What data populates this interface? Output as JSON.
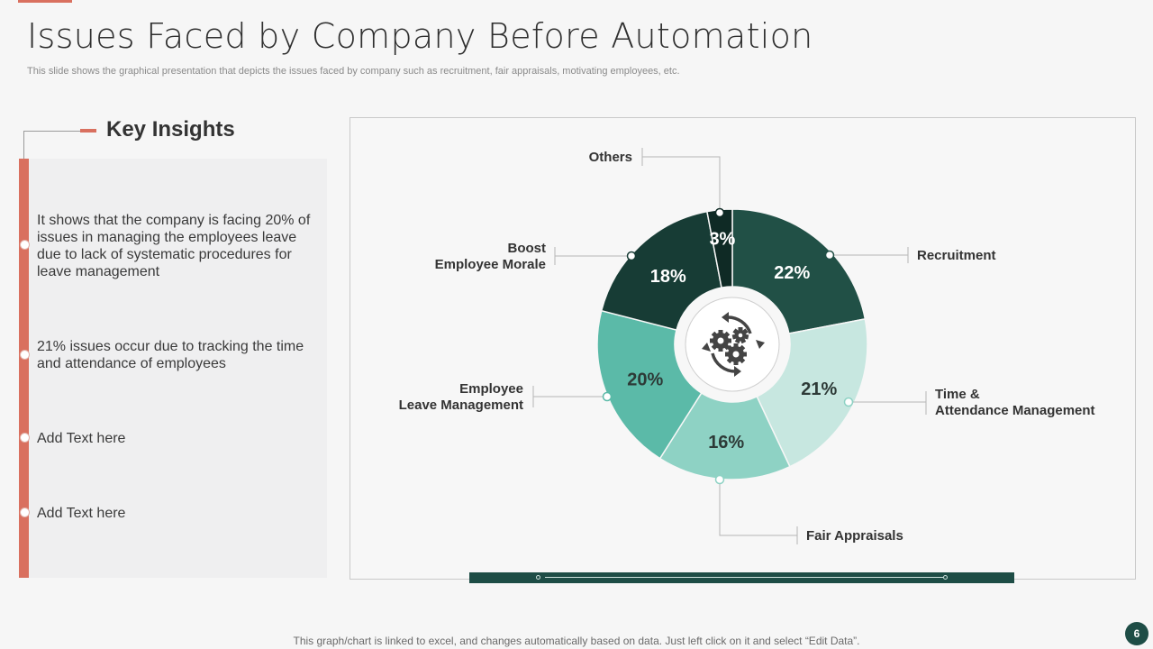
{
  "slide": {
    "title": "Issues Faced by Company Before Automation",
    "subtitle": "This slide shows the graphical presentation that depicts the issues faced by company such as recruitment, fair appraisals, motivating employees, etc.",
    "footer_note": "This graph/chart is linked to excel,  and changes automatically based on data. Just left click on it and select “Edit Data”.",
    "page_number": "6"
  },
  "insights": {
    "title": "Key Insights",
    "items": [
      "It shows that the company is facing 20% of issues in managing the employees leave due to lack of systematic procedures for leave management",
      "21% issues occur due to tracking the time and attendance of employees",
      "Add Text here",
      "Add Text here"
    ]
  },
  "colors": {
    "accent": "#d9705f",
    "dark_teal": "#1e4d46",
    "slice_recruitment": "#215046",
    "slice_time_attendance": "#c7e7e0",
    "slice_fair_appraisals": "#8ed2c4",
    "slice_leave_management": "#5bbaa8",
    "slice_boost_morale": "#173c35",
    "slice_others": "#0f2a25",
    "center_icon": "gears-refresh-icon"
  },
  "chart_data": {
    "type": "pie",
    "variant": "donut",
    "start": "12 o'clock, clockwise",
    "categories": [
      "Recruitment",
      "Time & Attendance Management",
      "Fair Appraisals",
      "Employee Leave Management",
      "Boost Employee Morale",
      "Others"
    ],
    "values": [
      22,
      21,
      16,
      20,
      18,
      3
    ],
    "labels": [
      "22%",
      "21%",
      "16%",
      "20%",
      "18%",
      "3%"
    ],
    "category_label_lines": [
      [
        "Recruitment"
      ],
      [
        "Time &",
        "Attendance Management"
      ],
      [
        "Fair Appraisals"
      ],
      [
        "Employee",
        "Leave Management"
      ],
      [
        "Boost",
        "Employee Morale"
      ],
      [
        "Others"
      ]
    ],
    "unit": "%"
  }
}
